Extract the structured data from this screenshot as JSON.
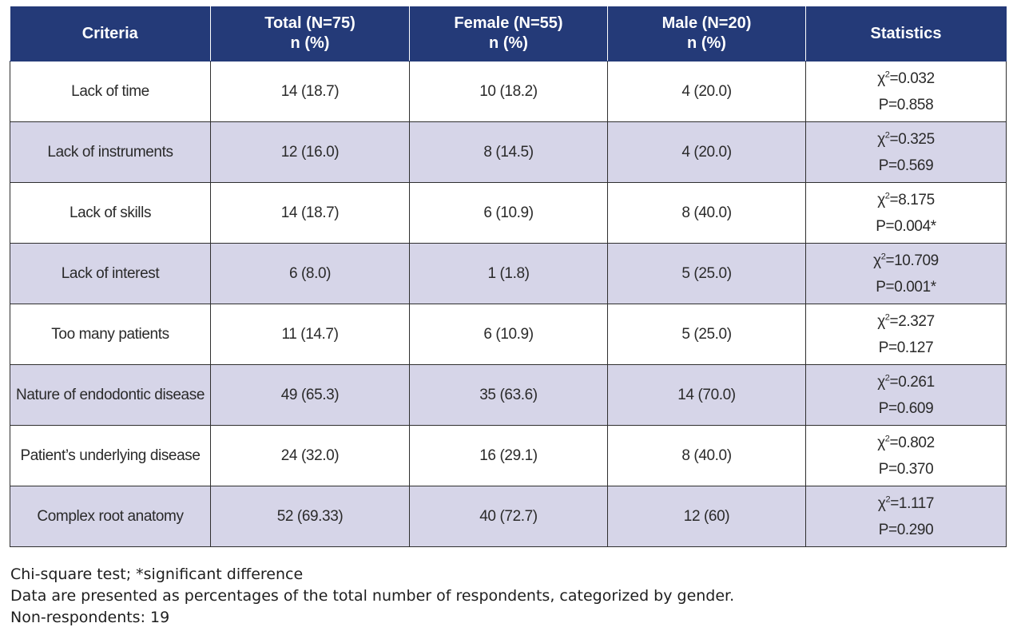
{
  "table": {
    "headers": [
      {
        "line1": "Criteria",
        "line2": ""
      },
      {
        "line1": "Total (N=75)",
        "line2": "n (%)"
      },
      {
        "line1": "Female (N=55)",
        "line2": "n (%)"
      },
      {
        "line1": "Male (N=20)",
        "line2": "n (%)"
      },
      {
        "line1": "Statistics",
        "line2": ""
      }
    ],
    "rows": [
      {
        "criteria": "Lack of time",
        "total": "14 (18.7)",
        "female": "10 (18.2)",
        "male": "4 (20.0)",
        "chi_label": "χ",
        "chi_sup": "2",
        "chi_value": "=0.032",
        "p": "P=0.858"
      },
      {
        "criteria": "Lack of instruments",
        "total": "12 (16.0)",
        "female": "8 (14.5)",
        "male": "4 (20.0)",
        "chi_label": "χ",
        "chi_sup": "2",
        "chi_value": "=0.325",
        "p": "P=0.569"
      },
      {
        "criteria": "Lack of skills",
        "total": "14 (18.7)",
        "female": "6 (10.9)",
        "male": "8 (40.0)",
        "chi_label": "χ",
        "chi_sup": "2",
        "chi_value": "=8.175",
        "p": "P=0.004*"
      },
      {
        "criteria": "Lack of interest",
        "total": "6 (8.0)",
        "female": "1 (1.8)",
        "male": "5 (25.0)",
        "chi_label": "χ",
        "chi_sup": "2",
        "chi_value": "=10.709",
        "p": "P=0.001*"
      },
      {
        "criteria": "Too many patients",
        "total": "11 (14.7)",
        "female": "6 (10.9)",
        "male": "5 (25.0)",
        "chi_label": "χ",
        "chi_sup": "2",
        "chi_value": "=2.327",
        "p": "P=0.127"
      },
      {
        "criteria": "Nature of endodontic disease",
        "total": "49 (65.3)",
        "female": "35 (63.6)",
        "male": "14 (70.0)",
        "chi_label": "χ",
        "chi_sup": "2",
        "chi_value": "=0.261",
        "p": "P=0.609"
      },
      {
        "criteria": "Patient’s underlying disease",
        "total": "24 (32.0)",
        "female": "16 (29.1)",
        "male": "8 (40.0)",
        "chi_label": "χ",
        "chi_sup": "2",
        "chi_value": "=0.802",
        "p": "P=0.370"
      },
      {
        "criteria": "Complex root anatomy",
        "total": "52 (69.33)",
        "female": "40 (72.7)",
        "male": "12 (60)",
        "chi_label": "χ",
        "chi_sup": "2",
        "chi_value": "=1.117",
        "p": "P=0.290"
      }
    ]
  },
  "notes": [
    "Chi-square test; *significant difference",
    "Data are presented as percentages of the total number of respondents, categorized by gender.",
    "Non-respondents: 19"
  ],
  "colors": {
    "header_bg": "#243a78",
    "header_text": "#ffffff",
    "stripe": "#d6d5e8",
    "border": "#2f2f2f"
  }
}
